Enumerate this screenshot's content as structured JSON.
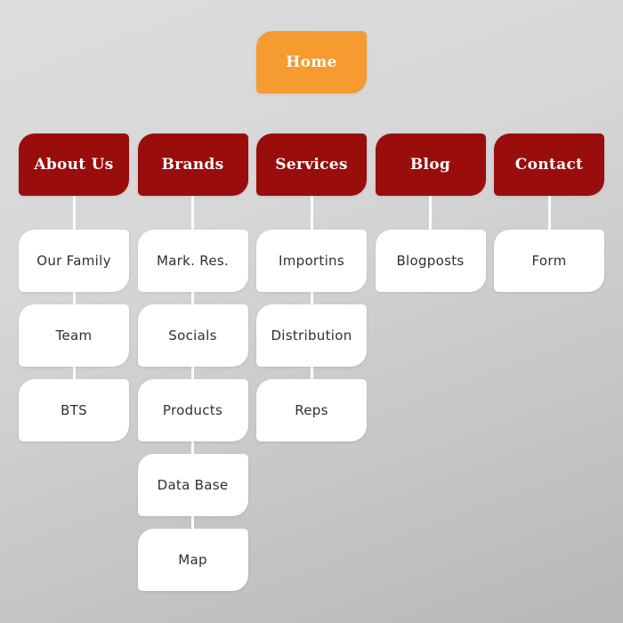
{
  "diagram": {
    "type": "sitemap",
    "home": {
      "label": "Home"
    },
    "columns": [
      {
        "label": "About Us",
        "children": [
          "Our Family",
          "Team",
          "BTS"
        ]
      },
      {
        "label": "Brands",
        "children": [
          "Mark. Res.",
          "Socials",
          "Products",
          "Data Base",
          "Map"
        ]
      },
      {
        "label": "Services",
        "children": [
          "Importins",
          "Distribution",
          "Reps"
        ]
      },
      {
        "label": "Blog",
        "children": [
          "Blogposts"
        ]
      },
      {
        "label": "Contact",
        "children": [
          "Form"
        ]
      }
    ]
  },
  "colors": {
    "home_node": "#F59B30",
    "branch_node": "#9A0D0D",
    "leaf_node": "#FFFFFF",
    "branch_text": "#FFFFFF",
    "leaf_text": "#303030",
    "connector": "#FFFFFF",
    "background_top": "#DDDDDD",
    "background_bottom": "#B8B8B8"
  }
}
